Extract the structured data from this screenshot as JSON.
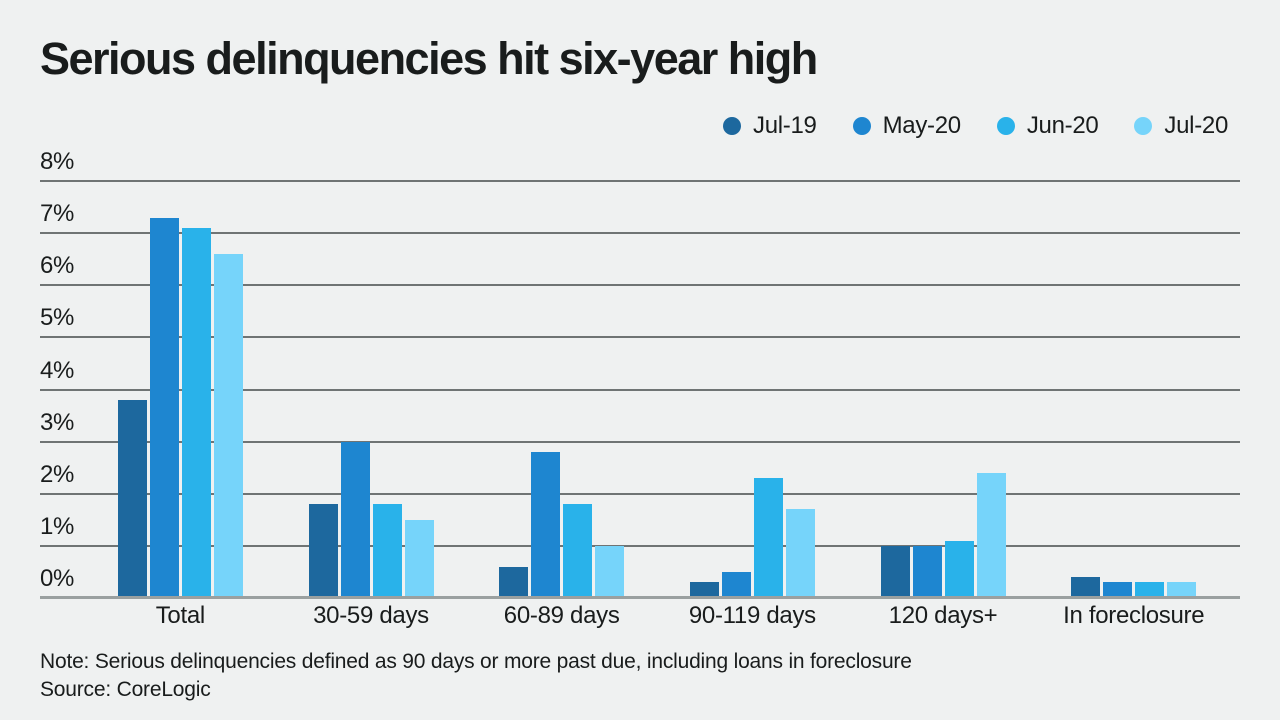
{
  "title": "Serious delinquencies hit six-year high",
  "footnote": {
    "note": "Note: Serious delinquencies defined as 90 days or more past due, including loans in foreclosure",
    "source": "Source: CoreLogic"
  },
  "colors": {
    "background": "#eff1f1",
    "text": "#191c1c",
    "gridline": "#6f7474",
    "axis_line": "#9aa0a0"
  },
  "chart_data": {
    "type": "bar",
    "title": "Serious delinquencies hit six-year high",
    "categories": [
      "Total",
      "30-59 days",
      "60-89 days",
      "90-119 days",
      "120 days+",
      "In foreclosure"
    ],
    "series": [
      {
        "name": "Jul-19",
        "color": "#1d689e",
        "values": [
          3.8,
          1.8,
          0.6,
          0.3,
          1.0,
          0.4
        ]
      },
      {
        "name": "May-20",
        "color": "#1e86d0",
        "values": [
          7.3,
          3.0,
          2.8,
          0.5,
          1.0,
          0.3
        ]
      },
      {
        "name": "Jun-20",
        "color": "#29b2ea",
        "values": [
          7.1,
          1.8,
          1.8,
          2.3,
          1.1,
          0.3
        ]
      },
      {
        "name": "Jul-20",
        "color": "#76d4fa",
        "values": [
          6.6,
          1.5,
          1.0,
          1.7,
          2.4,
          0.3
        ]
      }
    ],
    "xlabel": "",
    "ylabel": "",
    "ylim": [
      0,
      8
    ],
    "ytick_step": 1,
    "ytick_suffix": "%",
    "grid": true,
    "legend_position": "top-right",
    "unit": "percent of mortgages"
  }
}
